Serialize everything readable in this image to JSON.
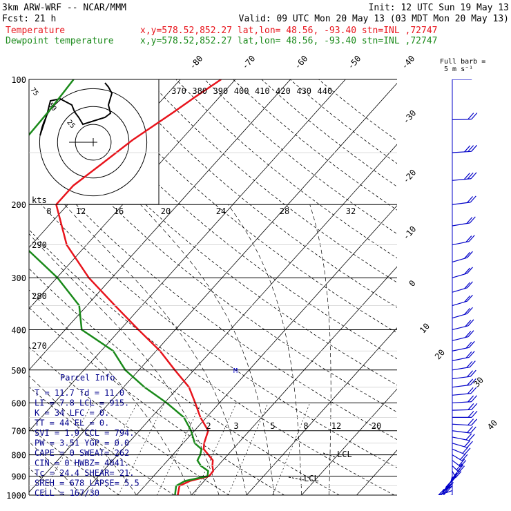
{
  "header": {
    "model": "3km ARW-WRF -- NCAR/MMM",
    "init": "Init: 12 UTC Sun 19 May 13",
    "fcst": "Fcst:    21 h",
    "valid": "Valid: 09 UTC Mon 20 May 13 (03 MDT Mon 20 May 13)",
    "temp_label": "Temperature",
    "temp_info": "x,y=578.52,852.27   lat,lon= 48.56, -93.40   stn=INL ,72747",
    "dew_label": "Dewpoint temperature",
    "dew_info": "x,y=578.52,852.27   lat,lon= 48.56, -93.40   stn=INL ,72747",
    "full_barb_line1": "Full barb =",
    "full_barb_line2": "5 m s⁻¹"
  },
  "colors": {
    "temperature": "#e8141c",
    "dewpoint": "#1a8a1a",
    "barbs": "#0000c8",
    "parcel_text": "#00008b"
  },
  "hodograph": {
    "speed_unit": "kts",
    "ring_labels": [
      "75",
      "50",
      "25"
    ]
  },
  "mixing_ratio_labels": [
    "2",
    "3",
    "5",
    "8",
    "12",
    "20"
  ],
  "lcl_labels": [
    "LCL",
    "LCL"
  ],
  "parcel_marker": "M",
  "parcel_info": {
    "title": "Parcel Info",
    "rows": [
      "T   =   11.7  Td =  11.0",
      "LI  =    7.8  LCL =  915.",
      "K   =     34  LFC =    0.",
      "TT  =     44  EL  =    0.",
      "SVI =    1.9  CCL =  794.",
      "PW  =   3.51  YGP =   0.0",
      "CAPE =     0  SWEAT=  262",
      "CIN  =     0  HWBZ= 4041.",
      "Tc  =   24.4  SHEAR=  21.",
      "SREH =   678  LAPSE=  5.5",
      "CELL = 167/30"
    ]
  },
  "chart_data": {
    "type": "line",
    "title": "",
    "y_axis": {
      "label": "",
      "scale": "log",
      "ticks": [
        100,
        200,
        300,
        400,
        500,
        600,
        700,
        800,
        900,
        1000
      ],
      "ylim": [
        1000,
        100
      ]
    },
    "isotherm_labels": [
      -80,
      -70,
      -60,
      -50,
      -40,
      -30,
      -20,
      -10,
      0,
      10,
      20,
      30,
      40
    ],
    "potential_temp_labels_upper": [
      370,
      380,
      390,
      400,
      410,
      420,
      430,
      440
    ],
    "potential_temp_labels_left": [
      290,
      280,
      270
    ],
    "hodograph_speed_labels": [
      8,
      12,
      16,
      20,
      24,
      28,
      32
    ],
    "series": [
      {
        "name": "Temperature",
        "pressure": [
          1000,
          950,
          925,
          900,
          875,
          850,
          825,
          800,
          775,
          750,
          700,
          650,
          600,
          550,
          500,
          450,
          400,
          350,
          300,
          250,
          200,
          180,
          160,
          140,
          120,
          110,
          100
        ],
        "values": [
          7.5,
          6.3,
          7.4,
          10.1,
          10.0,
          9.0,
          8.2,
          6.5,
          4.7,
          3.8,
          2.5,
          -1.1,
          -4.4,
          -8.1,
          -13.5,
          -19.3,
          -26.7,
          -34.9,
          -44.2,
          -53.6,
          -62.1,
          -62.1,
          -60.5,
          -58.8,
          -55.9,
          -54.4,
          -52.6
        ]
      },
      {
        "name": "Dewpoint temperature",
        "pressure": [
          1000,
          950,
          925,
          900,
          875,
          850,
          825,
          800,
          775,
          750,
          700,
          650,
          600,
          550,
          500,
          450,
          400,
          350,
          300,
          250,
          200,
          180,
          160,
          140,
          120,
          110,
          100
        ],
        "values": [
          7.0,
          5.7,
          6.5,
          9.8,
          9.1,
          6.9,
          5.4,
          5.0,
          4.3,
          2.1,
          -0.6,
          -4.1,
          -9.6,
          -16.2,
          -22.5,
          -27.8,
          -37.0,
          -41.4,
          -49.9,
          -61.6,
          -72.8,
          -76.7,
          -78.4,
          -78.4,
          -78.7,
          -79.0,
          -79.4
        ]
      }
    ],
    "wind_barbs": {
      "pressure": [
        1000,
        975,
        950,
        925,
        900,
        875,
        850,
        825,
        800,
        775,
        750,
        725,
        700,
        675,
        650,
        625,
        600,
        575,
        550,
        525,
        500,
        475,
        450,
        425,
        400,
        375,
        350,
        325,
        300,
        275,
        250,
        225,
        200,
        175,
        150,
        125,
        100
      ],
      "speed_kt": [
        30,
        35,
        40,
        40,
        35,
        30,
        25,
        20,
        20,
        20,
        15,
        15,
        15,
        15,
        15,
        15,
        15,
        15,
        15,
        15,
        15,
        20,
        20,
        20,
        20,
        20,
        15,
        15,
        15,
        15,
        20,
        20,
        20,
        25,
        25,
        20,
        20
      ],
      "direction_deg": [
        120,
        135,
        150,
        160,
        175,
        190,
        200,
        205,
        210,
        220,
        230,
        240,
        250,
        260,
        270,
        275,
        280,
        285,
        290,
        290,
        295,
        300,
        300,
        305,
        305,
        310,
        310,
        310,
        310,
        310,
        300,
        295,
        290,
        285,
        280,
        275,
        270
      ]
    }
  }
}
